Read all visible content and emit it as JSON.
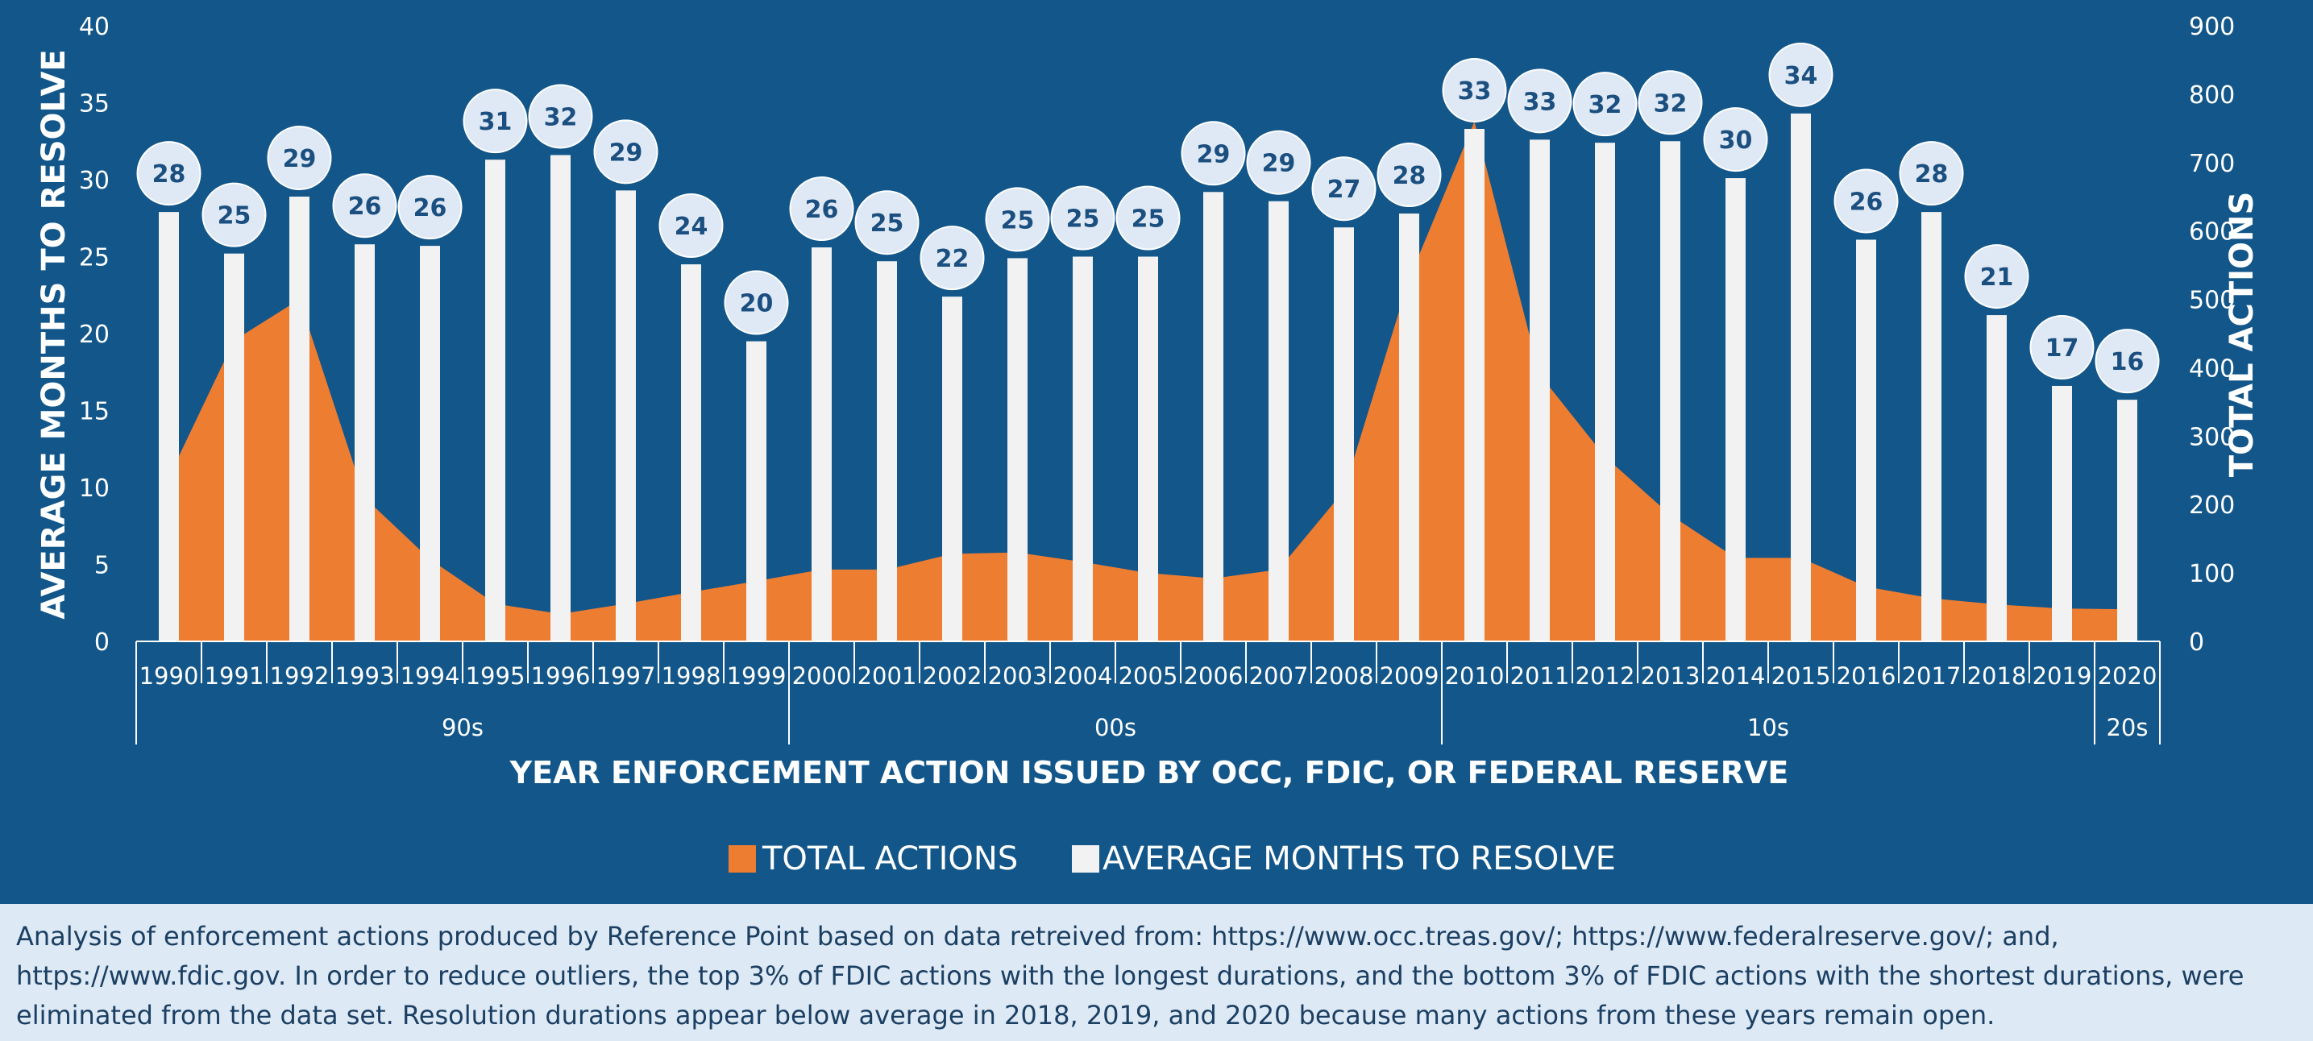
{
  "chart_data": {
    "type": "bar",
    "title": "",
    "xlabel": "YEAR ENFORCEMENT ACTION ISSUED BY OCC, FDIC, OR FEDERAL RESERVE",
    "ylabel_left": "AVERAGE MONTHS TO RESOLVE",
    "ylabel_right": "TOTAL ACTIONS",
    "ylim_left": [
      0,
      40
    ],
    "ylim_right": [
      0,
      900
    ],
    "yticks_left": [
      "0",
      "5",
      "10",
      "15",
      "20",
      "25",
      "30",
      "35",
      "40"
    ],
    "yticks_right": [
      "0",
      "100",
      "200",
      "300",
      "400",
      "500",
      "600",
      "700",
      "800",
      "900"
    ],
    "categories": [
      "1990",
      "1991",
      "1992",
      "1993",
      "1994",
      "1995",
      "1996",
      "1997",
      "1998",
      "1999",
      "2000",
      "2001",
      "2002",
      "2003",
      "2004",
      "2005",
      "2006",
      "2007",
      "2008",
      "2009",
      "2010",
      "2011",
      "2012",
      "2013",
      "2014",
      "2015",
      "2016",
      "2017",
      "2018",
      "2019",
      "2020"
    ],
    "decades": [
      {
        "label": "90s",
        "start": 0,
        "end": 9
      },
      {
        "label": "00s",
        "start": 10,
        "end": 19
      },
      {
        "label": "10s",
        "start": 20,
        "end": 29
      },
      {
        "label": "20s",
        "start": 30,
        "end": 30
      }
    ],
    "series": [
      {
        "name": "TOTAL ACTIONS",
        "type": "area",
        "axis": "right",
        "color": "#ed7d31",
        "values": [
          240,
          440,
          500,
          210,
          120,
          55,
          40,
          55,
          72,
          88,
          105,
          105,
          128,
          130,
          116,
          100,
          92,
          105,
          220,
          530,
          760,
          390,
          270,
          185,
          122,
          122,
          80,
          63,
          54,
          48,
          47
        ]
      },
      {
        "name": "AVERAGE MONTHS TO RESOLVE",
        "type": "bar",
        "axis": "left",
        "color": "#f2f2f2",
        "values": [
          27.9,
          25.2,
          28.9,
          25.8,
          25.7,
          31.3,
          31.6,
          29.3,
          24.5,
          19.5,
          25.6,
          24.7,
          22.4,
          24.9,
          25.0,
          25.0,
          29.2,
          28.6,
          26.9,
          27.8,
          33.3,
          32.6,
          32.4,
          32.5,
          30.1,
          34.3,
          26.1,
          27.9,
          21.2,
          16.6,
          15.7
        ],
        "labels": [
          "28",
          "25",
          "29",
          "26",
          "26",
          "31",
          "32",
          "29",
          "24",
          "20",
          "26",
          "25",
          "22",
          "25",
          "25",
          "25",
          "29",
          "29",
          "27",
          "28",
          "33",
          "33",
          "32",
          "32",
          "30",
          "34",
          "26",
          "28",
          "21",
          "17",
          "16"
        ]
      }
    ],
    "legend": {
      "position": "bottom"
    },
    "grid": false
  },
  "footnote": {
    "line1": "Analysis of enforcement actions produced by Reference Point based on data retreived from: https://www.occ.treas.gov/; https://www.federalreserve.gov/; and,",
    "line2": "https://www.fdic.gov. In order to reduce outliers, the top 3% of FDIC actions with the longest durations, and the bottom 3% of FDIC actions with the shortest durations, were",
    "line3": "eliminated from the data set. Resolution durations appear below average in 2018, 2019, and 2020 because many actions from these years remain open."
  }
}
